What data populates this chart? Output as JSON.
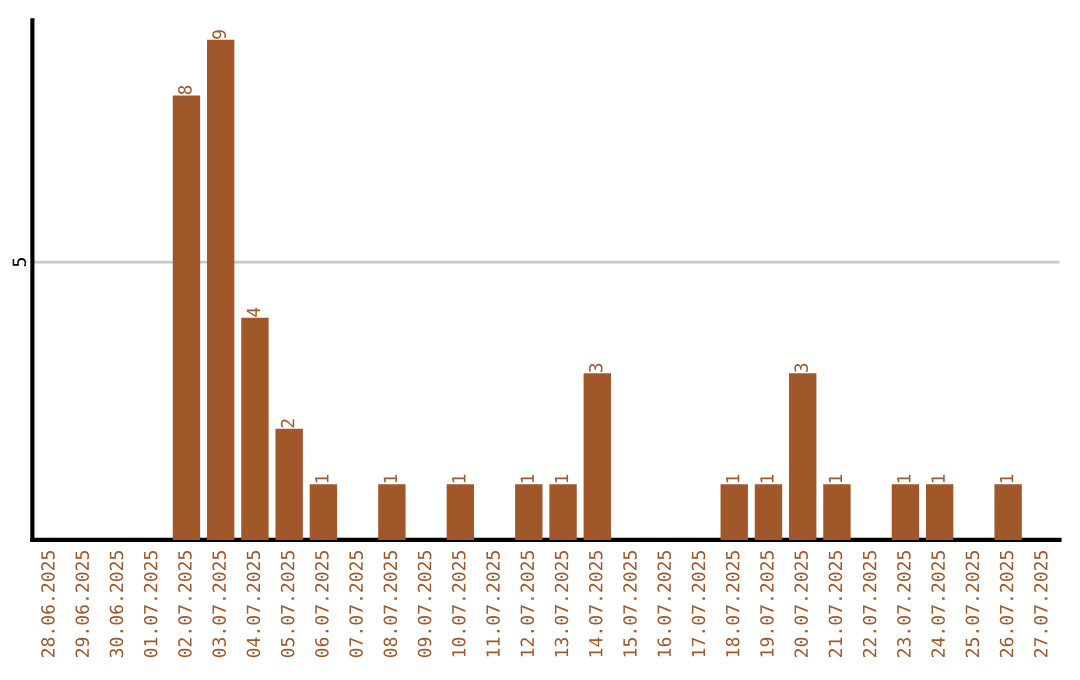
{
  "chart_data": {
    "type": "bar",
    "categories": [
      "28.06.2025",
      "29.06.2025",
      "30.06.2025",
      "01.07.2025",
      "02.07.2025",
      "03.07.2025",
      "04.07.2025",
      "05.07.2025",
      "06.07.2025",
      "07.07.2025",
      "08.07.2025",
      "09.07.2025",
      "10.07.2025",
      "11.07.2025",
      "12.07.2025",
      "13.07.2025",
      "14.07.2025",
      "15.07.2025",
      "16.07.2025",
      "17.07.2025",
      "18.07.2025",
      "19.07.2025",
      "20.07.2025",
      "21.07.2025",
      "22.07.2025",
      "23.07.2025",
      "24.07.2025",
      "25.07.2025",
      "26.07.2025",
      "27.07.2025"
    ],
    "values": [
      0,
      0,
      0,
      0,
      8,
      9,
      4,
      2,
      1,
      0,
      1,
      0,
      1,
      0,
      1,
      1,
      3,
      0,
      0,
      0,
      1,
      1,
      3,
      1,
      0,
      1,
      1,
      0,
      1,
      0
    ],
    "value_labels": [
      null,
      null,
      null,
      null,
      "8",
      "9",
      "4",
      "2",
      "1",
      null,
      "1",
      null,
      "1",
      null,
      "1",
      "1",
      "3",
      null,
      null,
      null,
      "1",
      "1",
      "3",
      "1",
      null,
      "1",
      "1",
      null,
      "1",
      null
    ],
    "color": "#a0572a",
    "ylim": [
      0,
      9.35
    ],
    "yticks": [
      5
    ],
    "grid": "y"
  }
}
